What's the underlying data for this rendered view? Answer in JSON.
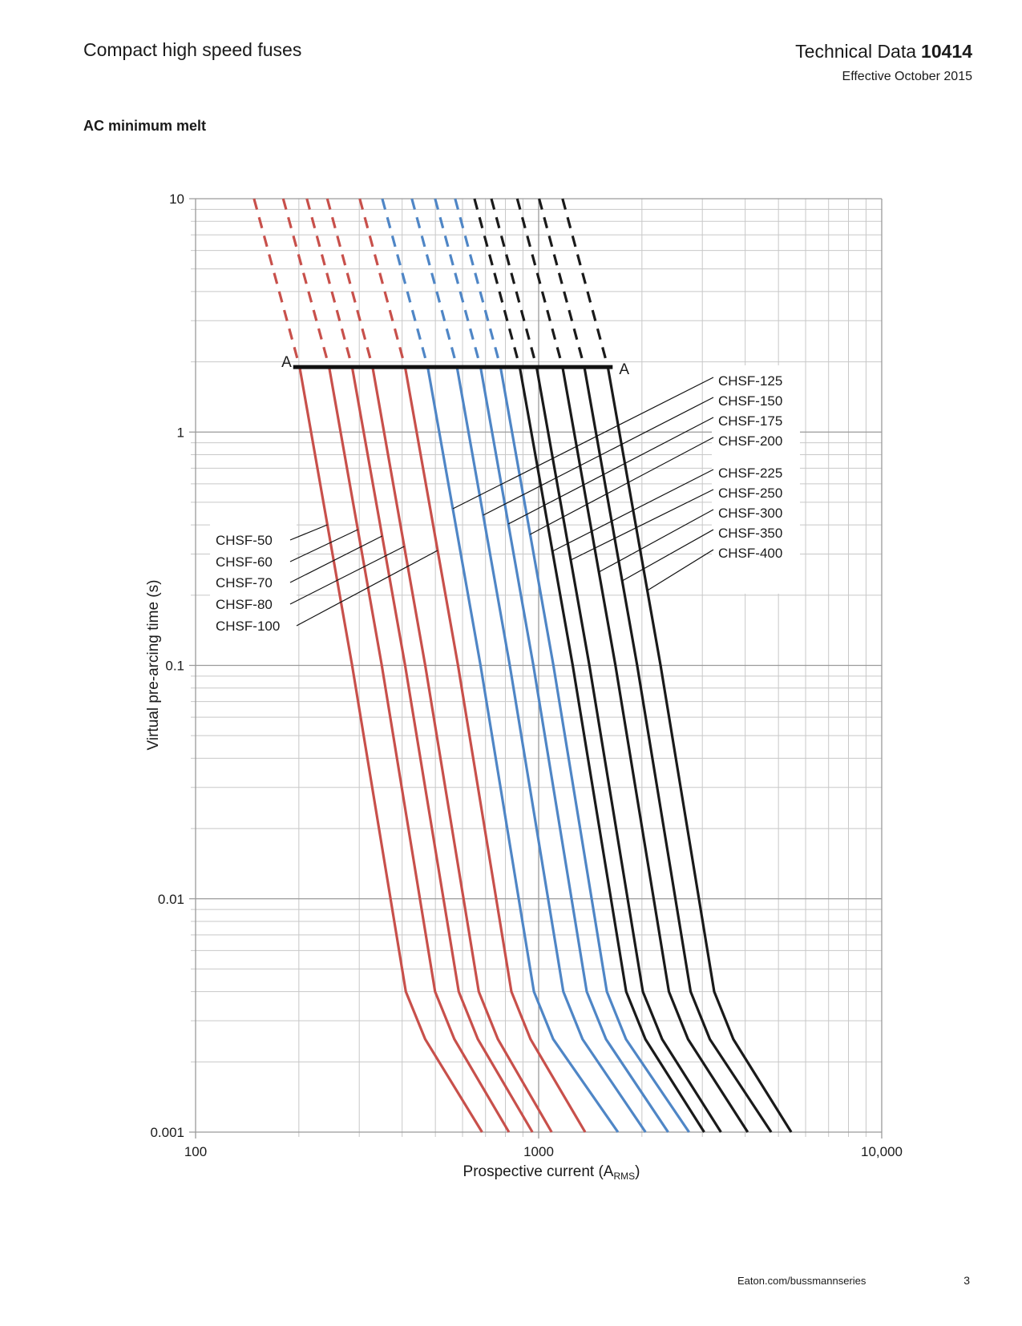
{
  "header": {
    "title": "Compact high speed fuses",
    "doc": "Technical Data",
    "doc_number": "10414",
    "effective": "Effective October 2015"
  },
  "footer": {
    "url": "Eaton.com/bussmannseries",
    "page": "3"
  },
  "chart_data": {
    "type": "line",
    "title": "AC minimum melt",
    "xlabel": [
      "Prospective current (A",
      "RMS",
      ")"
    ],
    "ylabel": "Virtual pre-arcing time (s)",
    "xlog": true,
    "ylog": true,
    "grid": true,
    "xlim": [
      100,
      10000
    ],
    "ylim": [
      0.001,
      10
    ],
    "xticks": [
      100,
      1000,
      {
        "value": 10000,
        "label": "10,000"
      }
    ],
    "yticks": [
      0.001,
      0.01,
      0.1,
      1,
      10
    ],
    "xminorticks": [
      200,
      300,
      400,
      500,
      600,
      700,
      800,
      900,
      2000,
      3000,
      4000,
      5000,
      6000,
      7000,
      8000,
      9000
    ],
    "yminorticks": [
      0.002,
      0.003,
      0.004,
      0.005,
      0.006,
      0.007,
      0.008,
      0.009,
      0.02,
      0.03,
      0.04,
      0.05,
      0.06,
      0.07,
      0.08,
      0.09,
      0.2,
      0.3,
      0.4,
      0.5,
      0.6,
      0.7,
      0.8,
      0.9,
      2,
      3,
      4,
      5,
      6,
      7,
      8,
      9
    ],
    "a_line": {
      "label": "A",
      "value": 1.9
    },
    "series": [
      {
        "name": "CHSF-50",
        "color": "#c8504b",
        "x": [
          148,
          201,
          286,
          410,
          467,
          684
        ],
        "values": [
          10,
          1.9,
          0.1,
          0.004,
          0.0025,
          0.001
        ]
      },
      {
        "name": "CHSF-60",
        "color": "#c8504b",
        "x": [
          180,
          245,
          349,
          499,
          568,
          819
        ],
        "values": [
          10,
          1.9,
          0.1,
          0.004,
          0.0025,
          0.001
        ]
      },
      {
        "name": "CHSF-70",
        "color": "#c8504b",
        "x": [
          211,
          286,
          408,
          585,
          665,
          959
        ],
        "values": [
          10,
          1.9,
          0.1,
          0.004,
          0.0025,
          0.001
        ]
      },
      {
        "name": "CHSF-80",
        "color": "#c8504b",
        "x": [
          242,
          328,
          467,
          669,
          761,
          1091
        ],
        "values": [
          10,
          1.9,
          0.1,
          0.004,
          0.0025,
          0.001
        ]
      },
      {
        "name": "CHSF-100",
        "color": "#c8504b",
        "x": [
          301,
          408,
          582,
          833,
          947,
          1366
        ],
        "values": [
          10,
          1.9,
          0.1,
          0.004,
          0.0025,
          0.001
        ]
      },
      {
        "name": "CHSF-125",
        "color": "#4f86c6",
        "x": [
          350,
          475,
          677,
          969,
          1103,
          1702
        ],
        "values": [
          10,
          1.9,
          0.1,
          0.004,
          0.0025,
          0.001
        ]
      },
      {
        "name": "CHSF-150",
        "color": "#4f86c6",
        "x": [
          427,
          578,
          824,
          1180,
          1343,
          2049
        ],
        "values": [
          10,
          1.9,
          0.1,
          0.004,
          0.0025,
          0.001
        ]
      },
      {
        "name": "CHSF-175",
        "color": "#4f86c6",
        "x": [
          499,
          677,
          965,
          1381,
          1572,
          2384
        ],
        "values": [
          10,
          1.9,
          0.1,
          0.004,
          0.0025,
          0.001
        ]
      },
      {
        "name": "CHSF-200",
        "color": "#4f86c6",
        "x": [
          571,
          774,
          1104,
          1581,
          1798,
          2744
        ],
        "values": [
          10,
          1.9,
          0.1,
          0.004,
          0.0025,
          0.001
        ]
      },
      {
        "name": "CHSF-225",
        "color": "#1a1a1a",
        "x": [
          650,
          881,
          1257,
          1799,
          2047,
          3037
        ],
        "values": [
          10,
          1.9,
          0.1,
          0.004,
          0.0025,
          0.001
        ]
      },
      {
        "name": "CHSF-250",
        "color": "#1a1a1a",
        "x": [
          728,
          986,
          1406,
          2013,
          2291,
          3398
        ],
        "values": [
          10,
          1.9,
          0.1,
          0.004,
          0.0025,
          0.001
        ]
      },
      {
        "name": "CHSF-300",
        "color": "#1a1a1a",
        "x": [
          866,
          1174,
          1674,
          2397,
          2726,
          4068
        ],
        "values": [
          10,
          1.9,
          0.1,
          0.004,
          0.0025,
          0.001
        ]
      },
      {
        "name": "CHSF-350",
        "color": "#1a1a1a",
        "x": [
          1003,
          1359,
          1937,
          2774,
          3156,
          4762
        ],
        "values": [
          10,
          1.9,
          0.1,
          0.004,
          0.0025,
          0.001
        ]
      },
      {
        "name": "CHSF-400",
        "color": "#1a1a1a",
        "x": [
          1174,
          1591,
          2267,
          3248,
          3694,
          5448
        ],
        "values": [
          10,
          1.9,
          0.1,
          0.004,
          0.0025,
          0.001
        ]
      }
    ]
  }
}
